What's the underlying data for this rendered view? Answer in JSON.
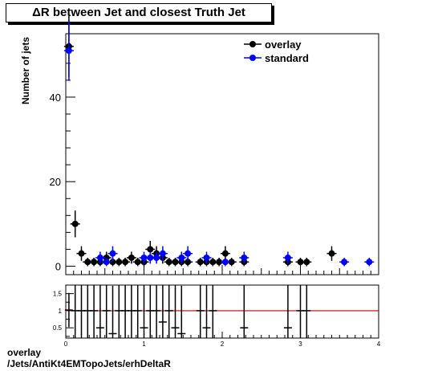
{
  "chart_data": [
    {
      "type": "scatter",
      "title": "ΔR between Jet and closest Truth Jet",
      "ylabel": "Number of jets",
      "xlim": [
        0,
        4
      ],
      "ylim": [
        -2,
        55
      ],
      "yticks": [
        0,
        20,
        40
      ],
      "legend_position": "top-right",
      "series": [
        {
          "name": "overlay",
          "color": "#000000",
          "marker": "circle",
          "points": [
            [
              0.04,
              52
            ],
            [
              0.12,
              10
            ],
            [
              0.2,
              3
            ],
            [
              0.28,
              1
            ],
            [
              0.36,
              1
            ],
            [
              0.44,
              1
            ],
            [
              0.52,
              2
            ],
            [
              0.6,
              1
            ],
            [
              0.68,
              1
            ],
            [
              0.76,
              1
            ],
            [
              0.84,
              2
            ],
            [
              0.92,
              1
            ],
            [
              1.0,
              1
            ],
            [
              1.08,
              4
            ],
            [
              1.16,
              3
            ],
            [
              1.24,
              2
            ],
            [
              1.32,
              1
            ],
            [
              1.4,
              1
            ],
            [
              1.48,
              1
            ],
            [
              1.56,
              1
            ],
            [
              1.72,
              1
            ],
            [
              1.8,
              1
            ],
            [
              1.88,
              1
            ],
            [
              1.96,
              1
            ],
            [
              2.04,
              3
            ],
            [
              2.12,
              1
            ],
            [
              2.28,
              1
            ],
            [
              2.84,
              1
            ],
            [
              3.0,
              1
            ],
            [
              3.08,
              1
            ],
            [
              3.4,
              3
            ]
          ]
        },
        {
          "name": "standard",
          "color": "#0000ff",
          "marker": "circle",
          "points": [
            [
              0.04,
              51
            ],
            [
              0.44,
              2
            ],
            [
              0.52,
              1
            ],
            [
              0.6,
              3
            ],
            [
              1.0,
              2
            ],
            [
              1.08,
              2
            ],
            [
              1.16,
              2
            ],
            [
              1.24,
              3
            ],
            [
              1.48,
              2
            ],
            [
              1.56,
              3
            ],
            [
              1.8,
              2
            ],
            [
              2.04,
              1
            ],
            [
              2.28,
              2
            ],
            [
              2.84,
              2
            ],
            [
              3.56,
              1
            ],
            [
              3.88,
              1
            ]
          ]
        }
      ]
    },
    {
      "type": "scatter",
      "xlim": [
        0,
        4
      ],
      "ylim": [
        0.2,
        1.75
      ],
      "xticks": [
        0,
        1,
        2,
        3,
        4
      ],
      "yticks": [
        0.5,
        1,
        1.5
      ],
      "reference_line": 1,
      "reference_color": "#c00000",
      "series": [
        {
          "name": "",
          "color": "#000000",
          "marker": "none",
          "points": [
            [
              0.04,
              1.02
            ],
            [
              0.12,
              1
            ],
            [
              0.2,
              1
            ],
            [
              0.28,
              1
            ],
            [
              0.36,
              1
            ],
            [
              0.44,
              0.5
            ],
            [
              0.52,
              1
            ],
            [
              0.6,
              0.33
            ],
            [
              0.68,
              1
            ],
            [
              0.76,
              1
            ],
            [
              0.84,
              1
            ],
            [
              0.92,
              1
            ],
            [
              1.0,
              0.5
            ],
            [
              1.08,
              1
            ],
            [
              1.16,
              1
            ],
            [
              1.24,
              0.67
            ],
            [
              1.32,
              1
            ],
            [
              1.4,
              0.5
            ],
            [
              1.48,
              0.33
            ],
            [
              1.72,
              1
            ],
            [
              1.8,
              0.5
            ],
            [
              1.88,
              1
            ],
            [
              2.28,
              0.5
            ],
            [
              2.84,
              0.5
            ],
            [
              3.0,
              1
            ],
            [
              3.08,
              1
            ]
          ]
        }
      ]
    }
  ],
  "captions": {
    "line1": "overlay",
    "line2": "/Jets/AntiKt4EMTopoJets/erhDeltaR"
  }
}
